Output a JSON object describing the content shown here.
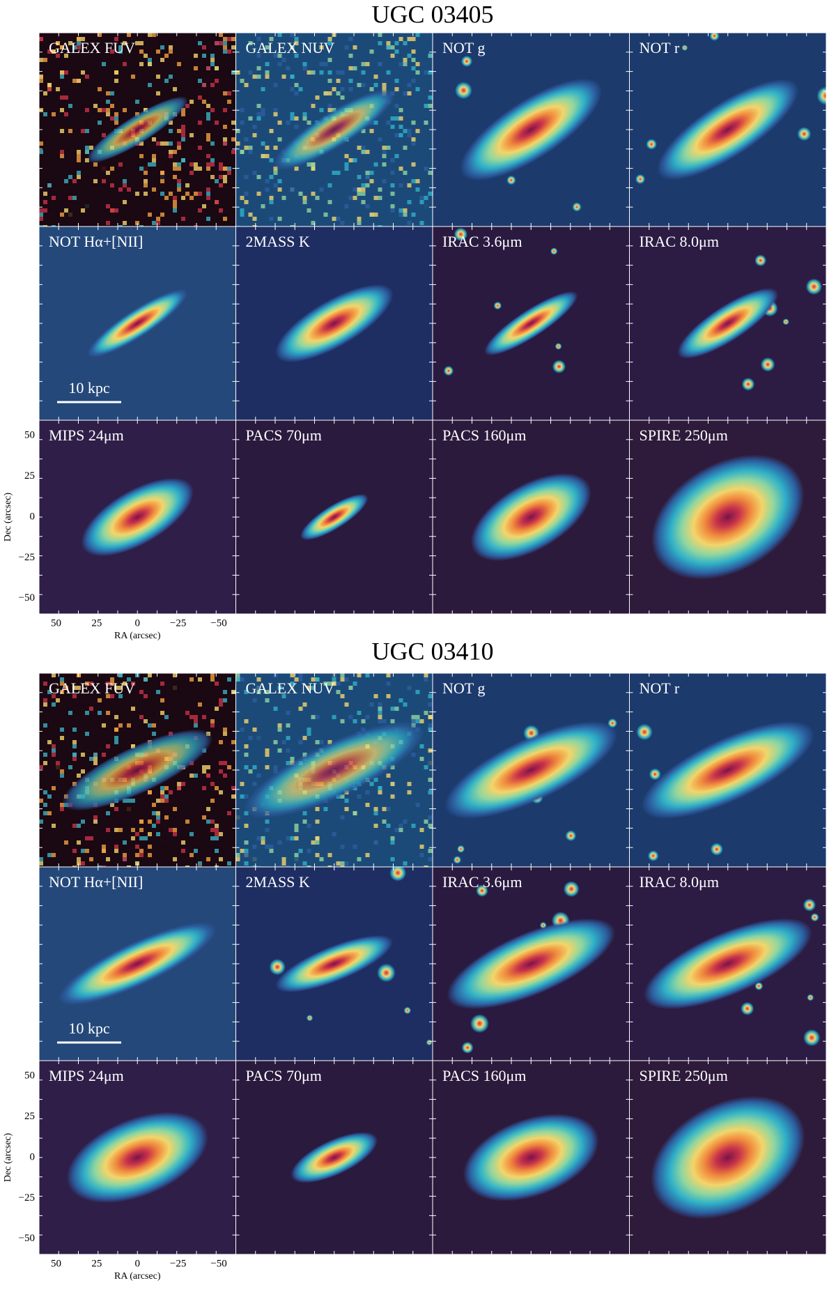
{
  "figures": [
    {
      "title": "UGC 03405",
      "panels": [
        "GALEX FUV",
        "GALEX NUV",
        "NOT g",
        "NOT r",
        "NOT Hα+[NII]",
        "2MASS K",
        "IRAC 3.6μm",
        "IRAC 8.0μm",
        "MIPS 24μm",
        "PACS 70μm",
        "PACS 160μm",
        "SPIRE 250μm"
      ],
      "scale_bar": "10 kpc",
      "y_label": "Dec (arcsec)",
      "x_label": "RA (arcsec)",
      "y_ticks": [
        "50",
        "25",
        "0",
        "−25",
        "−50"
      ],
      "x_ticks": [
        "50",
        "25",
        "0",
        "−25",
        "−50"
      ]
    },
    {
      "title": "UGC 03410",
      "panels": [
        "GALEX FUV",
        "GALEX NUV",
        "NOT g",
        "NOT r",
        "NOT Hα+[NII]",
        "2MASS K",
        "IRAC 3.6μm",
        "IRAC 8.0μm",
        "MIPS 24μm",
        "PACS 70μm",
        "PACS 160μm",
        "SPIRE 250μm"
      ],
      "scale_bar": "10 kpc",
      "y_label": "Dec (arcsec)",
      "x_label": "RA (arcsec)",
      "y_ticks": [
        "50",
        "25",
        "0",
        "−25",
        "−50"
      ],
      "x_ticks": [
        "50",
        "25",
        "0",
        "−25",
        "−50"
      ]
    }
  ]
}
